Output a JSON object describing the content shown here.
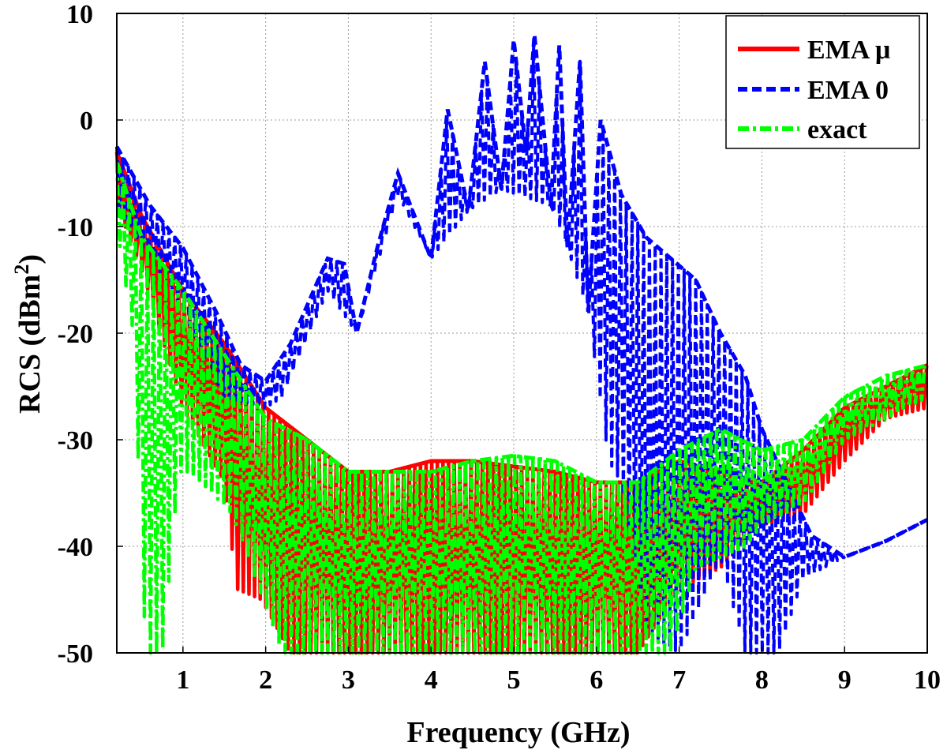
{
  "chart_data": {
    "type": "line",
    "xlabel": "Frequency (GHz)",
    "ylabel_main": "RCS (dBm",
    "ylabel_sup": "2",
    "ylabel_close": ")",
    "xlim": [
      0.2,
      10
    ],
    "ylim": [
      -50,
      10
    ],
    "x_ticks": [
      1,
      2,
      3,
      4,
      5,
      6,
      7,
      8,
      9,
      10
    ],
    "x_tick_labels": [
      "1",
      "2",
      "3",
      "4",
      "5",
      "6",
      "7",
      "8",
      "9",
      "10"
    ],
    "y_ticks": [
      10,
      0,
      -10,
      -20,
      -30,
      -40,
      -50
    ],
    "y_tick_labels": [
      "10",
      "0",
      "-10",
      "-20",
      "-30",
      "-40",
      "-50"
    ],
    "grid": true,
    "legend_position": "top-right",
    "series": [
      {
        "name": "EMA μ",
        "color": "#ff0000",
        "style": "solid",
        "upper_envelope": [
          [
            0.2,
            -3
          ],
          [
            0.5,
            -9
          ],
          [
            1.0,
            -16
          ],
          [
            1.5,
            -21
          ],
          [
            2.0,
            -27
          ],
          [
            2.5,
            -30
          ],
          [
            3.0,
            -33
          ],
          [
            3.5,
            -33
          ],
          [
            4.0,
            -32
          ],
          [
            4.5,
            -32
          ],
          [
            5.0,
            -32.5
          ],
          [
            5.5,
            -33
          ],
          [
            6.0,
            -34
          ],
          [
            6.5,
            -34
          ],
          [
            7.0,
            -32
          ],
          [
            7.5,
            -33
          ],
          [
            8.0,
            -34
          ],
          [
            8.5,
            -31
          ],
          [
            9.0,
            -27
          ],
          [
            9.5,
            -25
          ],
          [
            10,
            -23
          ]
        ],
        "lower_envelope": [
          [
            0.2,
            -8
          ],
          [
            0.5,
            -14
          ],
          [
            1.0,
            -27
          ],
          [
            1.5,
            -34
          ],
          [
            1.65,
            -44
          ],
          [
            1.95,
            -45
          ],
          [
            2.3,
            -50
          ],
          [
            6.5,
            -50
          ],
          [
            7.0,
            -44
          ],
          [
            7.5,
            -42
          ],
          [
            8.0,
            -38
          ],
          [
            8.5,
            -37
          ],
          [
            9.0,
            -32
          ],
          [
            9.5,
            -28
          ],
          [
            10,
            -27
          ]
        ]
      },
      {
        "name": "EMA 0",
        "color": "#0000ff",
        "style": "dashed",
        "upper_envelope": [
          [
            0.2,
            -2.5
          ],
          [
            0.6,
            -8
          ],
          [
            1.0,
            -12
          ],
          [
            1.4,
            -18
          ],
          [
            1.7,
            -23
          ],
          [
            2.0,
            -24.5
          ],
          [
            2.3,
            -21
          ],
          [
            2.75,
            -13
          ],
          [
            2.95,
            -13.5
          ],
          [
            3.1,
            -20
          ],
          [
            3.35,
            -12
          ],
          [
            3.6,
            -5
          ],
          [
            3.85,
            -10
          ],
          [
            4.0,
            -13
          ],
          [
            4.2,
            1
          ],
          [
            4.45,
            -8.5
          ],
          [
            4.65,
            5.5
          ],
          [
            4.85,
            -6.5
          ],
          [
            5.0,
            7.5
          ],
          [
            5.15,
            -3
          ],
          [
            5.25,
            8
          ],
          [
            5.45,
            -8
          ],
          [
            5.55,
            7
          ],
          [
            5.65,
            -12
          ],
          [
            5.8,
            5.5
          ],
          [
            5.9,
            -18
          ],
          [
            6.05,
            0
          ],
          [
            6.3,
            -7
          ],
          [
            6.6,
            -11
          ],
          [
            6.9,
            -13
          ],
          [
            7.2,
            -15
          ],
          [
            7.5,
            -20
          ],
          [
            7.8,
            -24
          ],
          [
            8.0,
            -29
          ],
          [
            8.3,
            -34
          ],
          [
            8.6,
            -39
          ],
          [
            9.0,
            -41
          ],
          [
            9.5,
            -39.5
          ],
          [
            10,
            -37.5
          ]
        ],
        "lower_envelope": [
          [
            0.2,
            -8
          ],
          [
            1.0,
            -18
          ],
          [
            1.5,
            -26
          ],
          [
            2.0,
            -27
          ],
          [
            2.2,
            -26
          ],
          [
            2.75,
            -16
          ],
          [
            3.1,
            -20
          ],
          [
            3.6,
            -7
          ],
          [
            4.0,
            -13
          ],
          [
            4.45,
            -8.5
          ],
          [
            4.85,
            -6.5
          ],
          [
            5.45,
            -8
          ],
          [
            5.65,
            -12
          ],
          [
            5.9,
            -18
          ],
          [
            6.15,
            -32
          ],
          [
            6.3,
            -34
          ],
          [
            6.6,
            -48
          ],
          [
            7.0,
            -50
          ],
          [
            7.5,
            -41
          ],
          [
            7.8,
            -50
          ],
          [
            8.2,
            -50
          ],
          [
            8.5,
            -43
          ],
          [
            9.0,
            -41
          ],
          [
            9.5,
            -39.5
          ],
          [
            10,
            -37.5
          ]
        ]
      },
      {
        "name": "exact",
        "color": "#00ff00",
        "style": "dash-dot",
        "upper_envelope": [
          [
            0.2,
            -4
          ],
          [
            0.5,
            -11
          ],
          [
            1.0,
            -16
          ],
          [
            1.5,
            -22
          ],
          [
            2.0,
            -28
          ],
          [
            2.5,
            -30
          ],
          [
            3.0,
            -33
          ],
          [
            3.5,
            -33
          ],
          [
            4.0,
            -33
          ],
          [
            4.5,
            -32
          ],
          [
            5.0,
            -31.5
          ],
          [
            5.5,
            -32
          ],
          [
            6.0,
            -34
          ],
          [
            6.5,
            -34
          ],
          [
            7.0,
            -31
          ],
          [
            7.5,
            -29
          ],
          [
            8.0,
            -31
          ],
          [
            8.5,
            -30
          ],
          [
            9.0,
            -26
          ],
          [
            9.5,
            -24
          ],
          [
            10,
            -23
          ]
        ],
        "lower_envelope": [
          [
            0.2,
            -10
          ],
          [
            0.4,
            -20
          ],
          [
            0.55,
            -50
          ],
          [
            0.75,
            -50
          ],
          [
            0.95,
            -33
          ],
          [
            1.1,
            -33
          ],
          [
            1.6,
            -37
          ],
          [
            2.2,
            -50
          ],
          [
            6.9,
            -50
          ],
          [
            7.2,
            -42
          ],
          [
            7.5,
            -41
          ],
          [
            7.8,
            -40
          ],
          [
            8.0,
            -38
          ],
          [
            8.5,
            -36
          ],
          [
            9.0,
            -30
          ],
          [
            9.5,
            -28
          ],
          [
            10,
            -26
          ]
        ]
      }
    ]
  }
}
